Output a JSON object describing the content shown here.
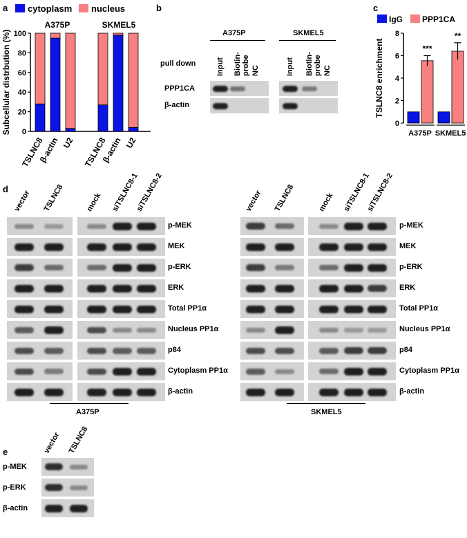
{
  "panel_labels": {
    "a": "a",
    "b": "b",
    "c": "c",
    "d": "d",
    "e": "e"
  },
  "chart_data": [
    {
      "type": "bar",
      "stacked": true,
      "ylabel": "Subcellular distrbution (%)",
      "ylim": [
        0,
        100
      ],
      "yticks": [
        "0",
        "20",
        "40",
        "60",
        "80",
        "100"
      ],
      "groups": [
        {
          "name": "A375P",
          "categories": [
            "TSLNC8",
            "β-actin",
            "U2"
          ]
        },
        {
          "name": "SKMEL5",
          "categories": [
            "TSLNC8",
            "β-actin",
            "U2"
          ]
        }
      ],
      "series": [
        {
          "name": "cytoplasm",
          "color": "#0a14e6",
          "values": [
            28,
            95,
            3,
            27,
            98,
            4
          ]
        },
        {
          "name": "nucleus",
          "color": "#f88080",
          "values": [
            72,
            5,
            97,
            73,
            2,
            96
          ]
        }
      ],
      "legend_position": "top"
    },
    {
      "type": "bar",
      "ylabel": "TSLNC8 enrichment",
      "ylim": [
        0,
        8
      ],
      "yticks": [
        "0",
        "2",
        "4",
        "6",
        "8"
      ],
      "categories": [
        "A375P",
        "SKMEL5"
      ],
      "series": [
        {
          "name": "IgG",
          "color": "#0a14e6",
          "values": [
            1.0,
            1.0
          ],
          "errors": [
            0,
            0
          ]
        },
        {
          "name": "PPP1CA",
          "color": "#f88080",
          "values": [
            5.55,
            6.4
          ],
          "errors": [
            0.45,
            0.75
          ]
        }
      ],
      "significance": [
        "***",
        "**"
      ],
      "legend_position": "top"
    }
  ],
  "panel_b": {
    "cell_lines": [
      "A375P",
      "SKMEL5"
    ],
    "row_label": "pull down",
    "lanes": [
      "Input",
      "Biotin-\nprobe",
      "NC"
    ],
    "blots": [
      {
        "label": "PPP1CA",
        "a375p": [
          1,
          0.45,
          0
        ],
        "skmel5": [
          1,
          0.4,
          0
        ]
      },
      {
        "label": "β-actin",
        "a375p": [
          1,
          0,
          0
        ],
        "skmel5": [
          1,
          0,
          0
        ]
      }
    ]
  },
  "panel_d": {
    "cell_lines": [
      "A375P",
      "SKMEL5"
    ],
    "lanes_left": [
      "vector",
      "TSLNC8"
    ],
    "lanes_right": [
      "mock",
      "siTSLNC8-1",
      "siTSLNC8-2"
    ],
    "rows": [
      {
        "label": "p-MEK",
        "a": [
          0.3,
          0.2
        ],
        "b": [
          0.3,
          1,
          1
        ],
        "c": [
          0.8,
          0.5
        ],
        "d": [
          0.3,
          1,
          1
        ]
      },
      {
        "label": "MEK",
        "a": [
          1,
          1
        ],
        "b": [
          1,
          1,
          1
        ],
        "c": [
          1,
          1
        ],
        "d": [
          1,
          1,
          1
        ]
      },
      {
        "label": "p-ERK",
        "a": [
          0.8,
          0.5
        ],
        "b": [
          0.5,
          1,
          1
        ],
        "c": [
          0.8,
          0.4
        ],
        "d": [
          0.5,
          1,
          1
        ]
      },
      {
        "label": "ERK",
        "a": [
          1,
          1
        ],
        "b": [
          1,
          1,
          1
        ],
        "c": [
          1,
          1
        ],
        "d": [
          1,
          1,
          0.8
        ]
      },
      {
        "label": "Total PP1α",
        "a": [
          1,
          1
        ],
        "b": [
          1,
          1,
          1
        ],
        "c": [
          1,
          1
        ],
        "d": [
          1,
          1,
          1
        ]
      },
      {
        "label": "Nucleus PP1α",
        "a": [
          0.6,
          1
        ],
        "b": [
          0.7,
          0.3,
          0.3
        ],
        "c": [
          0.3,
          1
        ],
        "d": [
          0.3,
          0.2,
          0.2
        ]
      },
      {
        "label": "p84",
        "a": [
          0.7,
          0.6
        ],
        "b": [
          0.7,
          0.6,
          0.6
        ],
        "c": [
          0.7,
          0.7
        ],
        "d": [
          0.6,
          0.8,
          0.8
        ]
      },
      {
        "label": "Cytoplasm PP1α",
        "a": [
          0.7,
          0.4
        ],
        "b": [
          0.7,
          1,
          1
        ],
        "c": [
          0.6,
          0.3
        ],
        "d": [
          0.5,
          1,
          1
        ]
      },
      {
        "label": "β-actin",
        "a": [
          1,
          1
        ],
        "b": [
          1,
          1,
          1
        ],
        "c": [
          1,
          1
        ],
        "d": [
          1,
          1,
          1
        ]
      }
    ]
  },
  "panel_e": {
    "lanes": [
      "vector",
      "TSLNC8"
    ],
    "rows": [
      {
        "label": "p-MEK",
        "v": [
          0.9,
          0.3
        ]
      },
      {
        "label": "p-ERK",
        "v": [
          0.9,
          0.3
        ]
      },
      {
        "label": "β-actin",
        "v": [
          1,
          1
        ]
      }
    ]
  }
}
